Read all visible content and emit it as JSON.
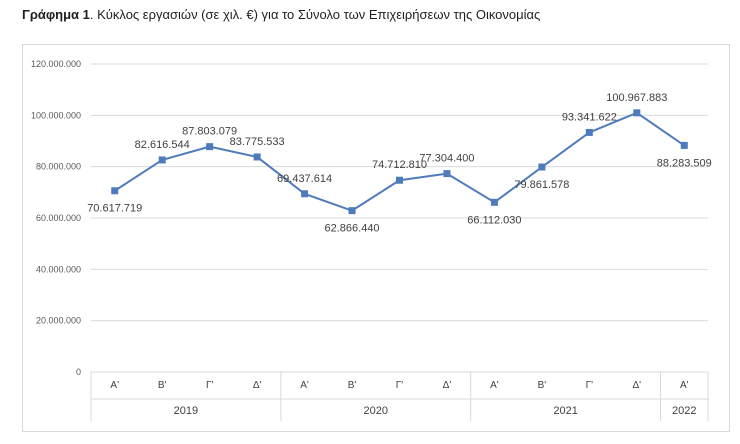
{
  "caption": {
    "bold": "Γράφημα 1",
    "text": ". Κύκλος εργασιών (σε χιλ. €) για το Σύνολο των Επιχειρήσεων της Οικονομίας"
  },
  "colors": {
    "line": "#4f7bbd",
    "grid": "#d9d9d9",
    "text": "#404040"
  },
  "chart_data": {
    "type": "line",
    "title": "Κύκλος εργασιών (σε χιλ. €) για το Σύνολο των Επιχειρήσεων της Οικονομίας",
    "xlabel": "",
    "ylabel": "",
    "ylim": [
      0,
      120000000
    ],
    "yticks": [
      0,
      20000000,
      40000000,
      60000000,
      80000000,
      100000000,
      120000000
    ],
    "ytick_labels": [
      "0",
      "20.000.000",
      "40.000.000",
      "60.000.000",
      "80.000.000",
      "100.000.000",
      "120.000.000"
    ],
    "grid": true,
    "legend": "none",
    "categories": [
      "Α'",
      "Β'",
      "Γ'",
      "Δ'",
      "Α'",
      "Β'",
      "Γ'",
      "Δ'",
      "Α'",
      "Β'",
      "Γ'",
      "Δ'",
      "Α'"
    ],
    "year_groups": [
      {
        "label": "2019",
        "count": 4
      },
      {
        "label": "2020",
        "count": 4
      },
      {
        "label": "2021",
        "count": 4
      },
      {
        "label": "2022",
        "count": 1
      }
    ],
    "series": [
      {
        "name": "Κύκλος εργασιών",
        "values": [
          70617719,
          82616544,
          87803079,
          83775533,
          69437614,
          62866440,
          74712810,
          77304400,
          66112030,
          79861578,
          93341622,
          100967883,
          88283509
        ],
        "labels": [
          "70.617.719",
          "82.616.544",
          "87.803.079",
          "83.775.533",
          "69.437.614",
          "62.866.440",
          "74.712.810",
          "77.304.400",
          "66.112.030",
          "79.861.578",
          "93.341.622",
          "100.967.883",
          "88.283.509"
        ],
        "label_positions": [
          "below",
          "above",
          "above",
          "above",
          "above",
          "below",
          "above",
          "above",
          "below",
          "below",
          "above",
          "above",
          "below"
        ]
      }
    ]
  }
}
